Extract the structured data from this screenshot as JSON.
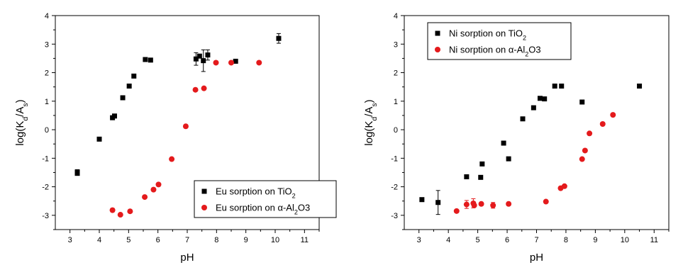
{
  "chart_data": [
    {
      "type": "scatter",
      "xlabel": "pH",
      "ylabel": "log(Kd/As)",
      "ylabel_parts": {
        "a": "log(K",
        "b": "d",
        "c": "/A",
        "d": "s",
        "e": ")"
      },
      "xlim": [
        2.5,
        11.5
      ],
      "ylim": [
        -3.5,
        4
      ],
      "xticks": [
        "3",
        "4",
        "5",
        "6",
        "7",
        "8",
        "9",
        "10",
        "11"
      ],
      "yticks": [
        "-3",
        "-2",
        "-1",
        "0",
        "1",
        "2",
        "3",
        "4"
      ],
      "legend_position": "bottom-right",
      "series": [
        {
          "name": "Eu sorption on TiO2",
          "label_parts": {
            "a": "Eu sorption on TiO",
            "b": "2",
            "c": "",
            "d": "",
            "e": ""
          },
          "color": "#000000",
          "marker": "square",
          "points": [
            {
              "x": 3.25,
              "y": -1.48,
              "err": 0.08
            },
            {
              "x": 3.25,
              "y": -1.53
            },
            {
              "x": 4.0,
              "y": -0.33
            },
            {
              "x": 4.45,
              "y": 0.42
            },
            {
              "x": 4.52,
              "y": 0.48
            },
            {
              "x": 4.8,
              "y": 1.12
            },
            {
              "x": 5.02,
              "y": 1.53
            },
            {
              "x": 5.18,
              "y": 1.88
            },
            {
              "x": 5.57,
              "y": 2.46
            },
            {
              "x": 5.75,
              "y": 2.44
            },
            {
              "x": 7.3,
              "y": 2.48,
              "err": 0.22
            },
            {
              "x": 7.42,
              "y": 2.58
            },
            {
              "x": 7.55,
              "y": 2.42,
              "err": 0.38
            },
            {
              "x": 7.7,
              "y": 2.62,
              "err": 0.18
            },
            {
              "x": 8.65,
              "y": 2.4
            },
            {
              "x": 10.12,
              "y": 3.2,
              "err": 0.17
            }
          ]
        },
        {
          "name": "Eu sorption on α-Al2O3",
          "label_parts": {
            "a": "Eu sorption on ",
            "b": "",
            "c": "α-Al",
            "d": "2",
            "e": "O3"
          },
          "color": "#e41a1c",
          "marker": "circle",
          "points": [
            {
              "x": 4.45,
              "y": -2.82,
              "err": 0.06
            },
            {
              "x": 4.72,
              "y": -2.98
            },
            {
              "x": 5.05,
              "y": -2.86
            },
            {
              "x": 5.55,
              "y": -2.36
            },
            {
              "x": 5.85,
              "y": -2.1
            },
            {
              "x": 6.02,
              "y": -1.92
            },
            {
              "x": 6.47,
              "y": -1.03
            },
            {
              "x": 6.95,
              "y": 0.12
            },
            {
              "x": 7.28,
              "y": 1.4
            },
            {
              "x": 7.57,
              "y": 1.45
            },
            {
              "x": 7.98,
              "y": 2.35
            },
            {
              "x": 8.5,
              "y": 2.35
            },
            {
              "x": 9.45,
              "y": 2.35
            }
          ]
        }
      ]
    },
    {
      "type": "scatter",
      "xlabel": "pH",
      "ylabel": "log(Kd/As)",
      "ylabel_parts": {
        "a": "log(K",
        "b": "d",
        "c": "/A",
        "d": "s",
        "e": ")"
      },
      "xlim": [
        2.5,
        11.5
      ],
      "ylim": [
        -3.5,
        4
      ],
      "xticks": [
        "3",
        "4",
        "5",
        "6",
        "7",
        "8",
        "9",
        "10",
        "11"
      ],
      "yticks": [
        "-3",
        "-2",
        "-1",
        "0",
        "1",
        "2",
        "3",
        "4"
      ],
      "legend_position": "top-left",
      "series": [
        {
          "name": "Ni sorption on TiO2",
          "label_parts": {
            "a": "Ni sorption on TiO",
            "b": "2",
            "c": "",
            "d": "",
            "e": ""
          },
          "color": "#000000",
          "marker": "square",
          "points": [
            {
              "x": 3.1,
              "y": -2.45
            },
            {
              "x": 3.65,
              "y": -2.55,
              "err": 0.42
            },
            {
              "x": 4.62,
              "y": -1.65
            },
            {
              "x": 5.1,
              "y": -1.67
            },
            {
              "x": 5.15,
              "y": -1.2
            },
            {
              "x": 5.88,
              "y": -0.47
            },
            {
              "x": 6.05,
              "y": -1.02
            },
            {
              "x": 6.53,
              "y": 0.38
            },
            {
              "x": 6.9,
              "y": 0.77
            },
            {
              "x": 7.12,
              "y": 1.1
            },
            {
              "x": 7.27,
              "y": 1.08
            },
            {
              "x": 7.62,
              "y": 1.53
            },
            {
              "x": 7.85,
              "y": 1.53
            },
            {
              "x": 8.55,
              "y": 0.97
            },
            {
              "x": 10.5,
              "y": 1.53
            }
          ]
        },
        {
          "name": "Ni sorption on α-Al2O3",
          "label_parts": {
            "a": "Ni sorption on ",
            "b": "",
            "c": "α-Al",
            "d": "2",
            "e": "O3"
          },
          "color": "#e41a1c",
          "marker": "circle",
          "points": [
            {
              "x": 4.28,
              "y": -2.85
            },
            {
              "x": 4.62,
              "y": -2.62,
              "err": 0.14
            },
            {
              "x": 4.85,
              "y": -2.58,
              "err": 0.16
            },
            {
              "x": 4.88,
              "y": -2.65
            },
            {
              "x": 5.12,
              "y": -2.6
            },
            {
              "x": 5.52,
              "y": -2.65,
              "err": 0.1
            },
            {
              "x": 6.05,
              "y": -2.6
            },
            {
              "x": 7.32,
              "y": -2.52
            },
            {
              "x": 7.82,
              "y": -2.05
            },
            {
              "x": 7.95,
              "y": -1.98
            },
            {
              "x": 8.55,
              "y": -1.03
            },
            {
              "x": 8.65,
              "y": -0.73
            },
            {
              "x": 8.8,
              "y": -0.13
            },
            {
              "x": 9.25,
              "y": 0.2
            },
            {
              "x": 9.6,
              "y": 0.52
            }
          ]
        }
      ]
    }
  ]
}
